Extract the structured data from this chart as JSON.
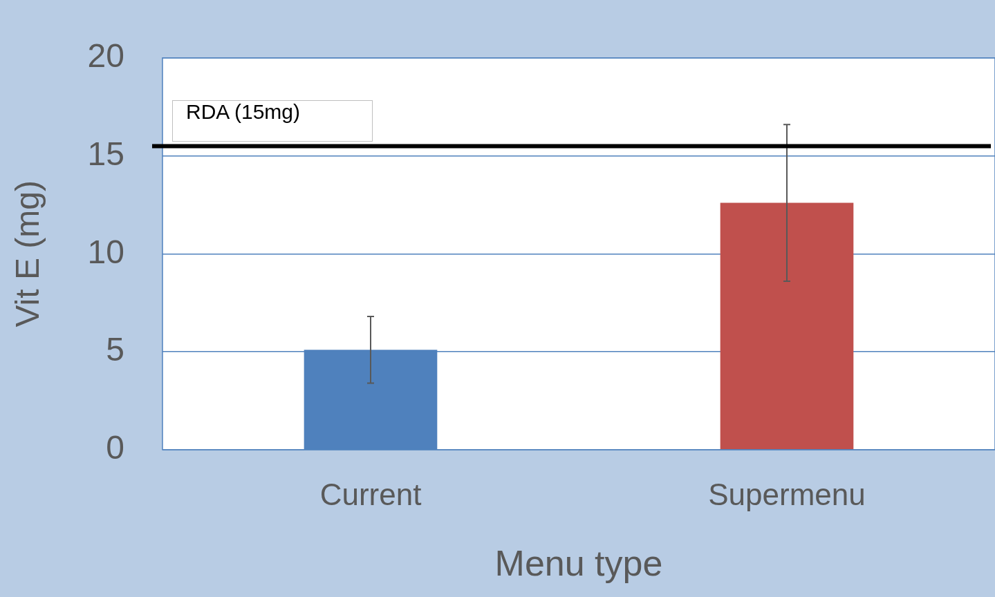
{
  "chart_data": {
    "type": "bar",
    "xlabel": "Menu type",
    "ylabel": "Vit E (mg)",
    "categories": [
      "Current",
      "Supermenu"
    ],
    "values": [
      5.1,
      12.6
    ],
    "colors": [
      "#4f81bd",
      "#c0504d"
    ],
    "errors": [
      1.7,
      4.0
    ],
    "ylim": [
      0,
      20
    ],
    "yticks": [
      0,
      5,
      10,
      15,
      20
    ],
    "grid": "y",
    "legend": false,
    "ref_lines": [
      {
        "axis": "y",
        "value": 15.5,
        "label": "RDA (15mg)",
        "color": "#000000"
      }
    ]
  }
}
